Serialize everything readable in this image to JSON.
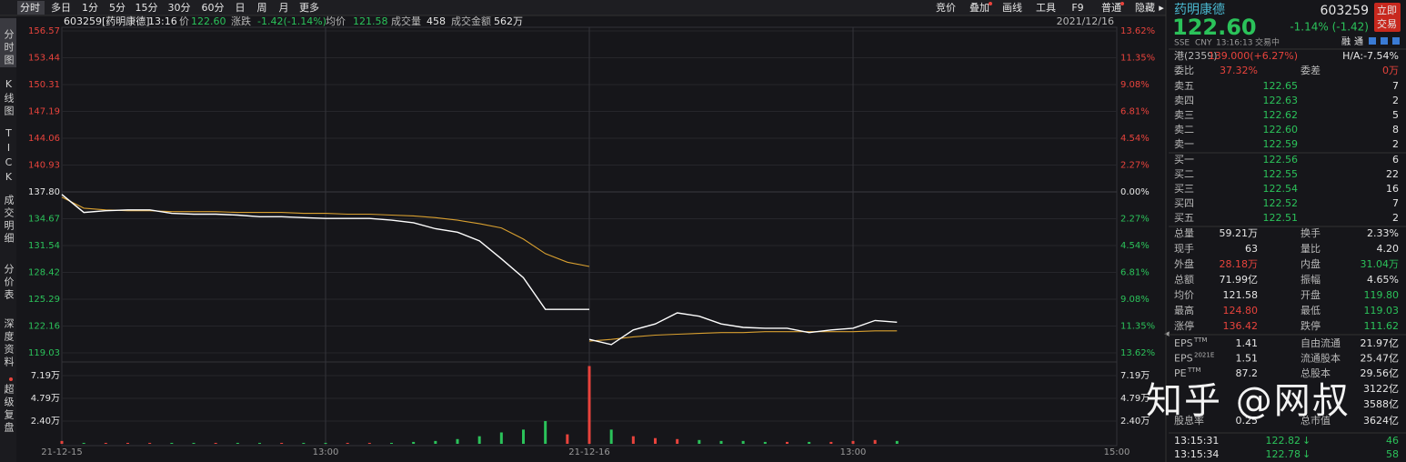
{
  "toolbar": {
    "tabs": [
      "分时",
      "多日",
      "1分",
      "5分",
      "15分",
      "30分",
      "60分",
      "日",
      "周",
      "月",
      "更多"
    ],
    "tools": [
      "竞价",
      "叠加",
      "画线",
      "工具",
      "F9",
      "普通",
      "隐藏"
    ]
  },
  "sidebar": [
    "分时图",
    "K线图",
    "TICK",
    "成交明细",
    "分价表",
    "深度资料",
    "超级复盘"
  ],
  "info_bar": {
    "code": "603259[药明康德]",
    "time": "13:16",
    "price_label": "价",
    "price": "122.60",
    "change_label": "涨跌",
    "change": "-1.42(-1.14%)",
    "avg_label": "均价",
    "avg": "121.58",
    "volume_label": "成交量",
    "volume": "458",
    "amount_label": "成交金额",
    "amount": "562万",
    "date": "2021/12/16"
  },
  "chart": {
    "type": "line",
    "ylim": [
      119.03,
      156.57
    ],
    "yticks": [
      156.57,
      153.44,
      150.31,
      147.19,
      144.06,
      140.93,
      {
        "value": 137.8,
        "label": "137.80"
      },
      134.67,
      131.54,
      128.42,
      125.29,
      122.16,
      119.03
    ],
    "pct_lim": [
      -13.62,
      13.62
    ],
    "pct_ticks": [
      {
        "value": 13.62,
        "label": "13.62%"
      },
      {
        "value": 11.35,
        "label": "11.35%"
      },
      {
        "value": 9.08,
        "label": "9.08%"
      },
      {
        "value": 6.81,
        "label": "6.81%"
      },
      {
        "value": 4.54,
        "label": "4.54%"
      },
      {
        "value": 2.27,
        "label": "2.27%"
      },
      {
        "value": 0,
        "label": "0.00%"
      },
      {
        "value": -2.27,
        "label": "2.27%"
      },
      {
        "value": -4.54,
        "label": "4.54%"
      },
      {
        "value": -6.81,
        "label": "6.81%"
      },
      {
        "value": -9.08,
        "label": "9.08%"
      },
      {
        "value": -11.35,
        "label": "11.35%"
      },
      {
        "value": -13.62,
        "label": "13.62%"
      }
    ],
    "volume_ylim": [
      0,
      8.44
    ],
    "volume_ticks": [
      {
        "value": 7.19,
        "label": "7.19万"
      },
      {
        "value": 4.79,
        "label": "4.79万"
      },
      {
        "value": 2.4,
        "label": "2.40万"
      }
    ],
    "x_labels": [
      "21-12-15",
      "13:00",
      "21-12-16",
      "13:00",
      "15:00"
    ],
    "colors": {
      "price": "#ffffff",
      "avg": "#d9a030",
      "up": "#e8433c",
      "down": "#2bc25a"
    },
    "days": [
      {
        "price": [
          137.5,
          135.4,
          135.6,
          135.7,
          135.7,
          135.3,
          135.2,
          135.2,
          135.1,
          134.9,
          134.9,
          134.8,
          134.7,
          134.7,
          134.7,
          134.5,
          134.2,
          133.5,
          133.1,
          132.1,
          130.0,
          127.8,
          124.1,
          124.1,
          124.1
        ],
        "avg": [
          137.2,
          135.9,
          135.7,
          135.6,
          135.6,
          135.5,
          135.5,
          135.5,
          135.4,
          135.4,
          135.4,
          135.3,
          135.3,
          135.2,
          135.2,
          135.1,
          135.0,
          134.8,
          134.5,
          134.1,
          133.6,
          132.3,
          130.6,
          129.6,
          129.1
        ],
        "volume": [
          0.3,
          0.1,
          0.1,
          0.1,
          0.1,
          0.1,
          0.1,
          0.1,
          0.1,
          0.1,
          0.1,
          0.1,
          0.1,
          0.1,
          0.1,
          0.1,
          0.2,
          0.3,
          0.5,
          0.8,
          1.2,
          1.5,
          2.4,
          1.0,
          0.3
        ]
      },
      {
        "price": [
          120.6,
          120.0,
          121.7,
          122.4,
          123.7,
          123.3,
          122.4,
          122.0,
          121.9,
          121.9,
          121.4,
          121.7,
          121.9,
          122.8,
          122.6
        ],
        "avg": [
          120.4,
          120.6,
          120.9,
          121.1,
          121.2,
          121.3,
          121.4,
          121.4,
          121.5,
          121.5,
          121.5,
          121.5,
          121.5,
          121.6,
          121.6
        ],
        "volume": [
          8.2,
          1.5,
          0.8,
          0.6,
          0.5,
          0.4,
          0.3,
          0.3,
          0.2,
          0.2,
          0.2,
          0.2,
          0.3,
          0.4,
          0.3
        ]
      }
    ]
  },
  "quote": {
    "name": "药明康德",
    "code": "603259",
    "trade_button": [
      "立即",
      "交易"
    ],
    "price": "122.60",
    "change": "-1.14% (-1.42)",
    "status": [
      "SSE",
      "CNY",
      "13:16:13",
      "交易中"
    ],
    "badges": [
      "融",
      "通"
    ],
    "hk": [
      "港(2359)",
      "139.000(+6.27%)",
      "H/A:-7.54%"
    ],
    "ratio": [
      "委比",
      "37.32%",
      "委差",
      "0万"
    ],
    "asks": [
      [
        "卖五",
        "122.65",
        "7"
      ],
      [
        "卖四",
        "122.63",
        "2"
      ],
      [
        "卖三",
        "122.62",
        "5"
      ],
      [
        "卖二",
        "122.60",
        "8"
      ],
      [
        "卖一",
        "122.59",
        "2"
      ]
    ],
    "bids": [
      [
        "买一",
        "122.56",
        "6"
      ],
      [
        "买二",
        "122.55",
        "22"
      ],
      [
        "买三",
        "122.54",
        "16"
      ],
      [
        "买四",
        "122.52",
        "7"
      ],
      [
        "买五",
        "122.51",
        "2"
      ]
    ],
    "stats": [
      [
        "总量",
        "59.21万",
        "换手",
        "2.33%"
      ],
      [
        "现手",
        "63",
        "量比",
        "4.20"
      ],
      [
        "外盘",
        "28.18万",
        "内盘",
        "31.04万"
      ],
      [
        "总额",
        "71.99亿",
        "振幅",
        "4.65%"
      ],
      [
        "均价",
        "121.58",
        "开盘",
        "119.80"
      ],
      [
        "最高",
        "124.80",
        "最低",
        "119.03"
      ],
      [
        "涨停",
        "136.42",
        "跌停",
        "111.62"
      ]
    ],
    "fundamentals": [
      [
        "EPS",
        "TTM",
        "1.41",
        "自由流通",
        "21.97亿"
      ],
      [
        "EPS",
        "2021E",
        "1.51",
        "流通股本",
        "25.47亿"
      ],
      [
        "PE",
        "TTM",
        "87.2",
        "总股本",
        "29.56亿"
      ]
    ],
    "covered": [
      "3122亿",
      "3588亿"
    ],
    "dividend": [
      "股息率",
      "0.25",
      "总市值",
      "3624亿"
    ],
    "trades": [
      [
        "13:15:31",
        "122.82",
        "46"
      ],
      [
        "13:15:34",
        "122.78",
        "58"
      ]
    ]
  },
  "watermark": "知乎 @网叔"
}
